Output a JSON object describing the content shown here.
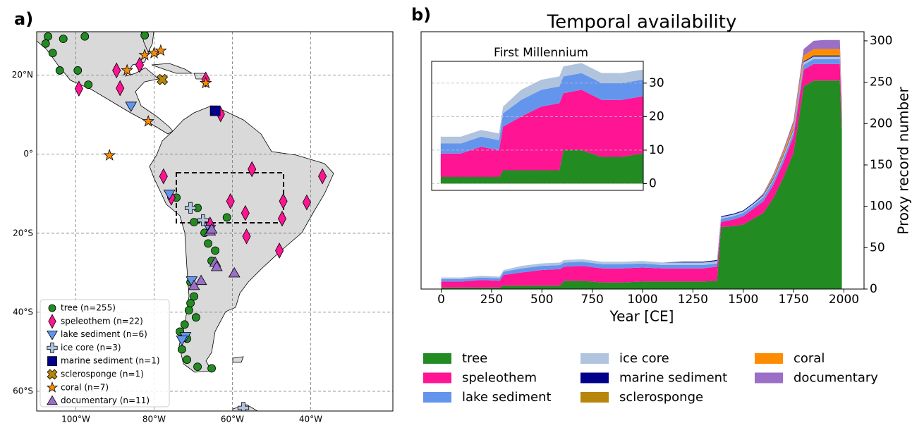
{
  "chart_data": [
    {
      "type": "map",
      "panel_label": "a)",
      "xlim": [
        -110,
        -19
      ],
      "ylim": [
        -65,
        31
      ],
      "xticks": [
        {
          "value": -100,
          "label": "100°W"
        },
        {
          "value": -80,
          "label": "80°W"
        },
        {
          "value": -60,
          "label": "60°W"
        },
        {
          "value": -40,
          "label": "40°W"
        }
      ],
      "yticks": [
        {
          "value": 20,
          "label": "20°N"
        },
        {
          "value": 0,
          "label": "0°"
        },
        {
          "value": -20,
          "label": "20°S"
        },
        {
          "value": -40,
          "label": "40°S"
        },
        {
          "value": -60,
          "label": "60°S"
        }
      ],
      "grid": true,
      "series": [
        {
          "name": "tree (n=255)",
          "color": "#228B22",
          "marker": "circle",
          "lon": [
            -107.1,
            -103.2,
            -97.7,
            -82.4,
            -107.7,
            -105.9,
            -104.1,
            -99.5,
            -96.8,
            -68.9,
            -69.8,
            -67.1,
            -66.2,
            -64.4,
            -65.3,
            -70.7,
            -69.8,
            -71.1,
            -72.2,
            -71.6,
            -72.9,
            -71.6,
            -68.9,
            -65.3,
            -74.3,
            -61.4,
            -70.7,
            -69.3,
            -73.4
          ],
          "lat": [
            29.8,
            29.2,
            29.8,
            30.1,
            28,
            25.6,
            21.2,
            21.2,
            17.6,
            -13.6,
            -17.2,
            -19.9,
            -22.6,
            -24.4,
            -27,
            -32.4,
            -36,
            -39.5,
            -43.1,
            -46.7,
            -49.4,
            -52,
            -53.8,
            -54.2,
            -11,
            -16,
            -37.7,
            -41.3,
            -44.9
          ]
        },
        {
          "name": "speleothem (n=22)",
          "color": "#FF1493",
          "marker": "diamond",
          "lon": [
            -89.6,
            -88.7,
            -99.2,
            -83.7,
            -66.8,
            -77.6,
            -75.6,
            -55,
            -60.5,
            -56.7,
            -56.4,
            -47.3,
            -41,
            -37,
            -65.7,
            -48,
            -63,
            -47
          ],
          "lat": [
            21.2,
            16.7,
            16.6,
            22.6,
            18.9,
            -5.6,
            -11,
            -3.8,
            -11.9,
            -14.9,
            -20.8,
            -16.3,
            -12.2,
            -5.6,
            -17.8,
            -24.4,
            10.1,
            -11.9
          ]
        },
        {
          "name": "lake sediment (n=6)",
          "color": "#6495ED",
          "marker": "triangle-down",
          "lon": [
            -85.9,
            -76.1,
            -70.4,
            -72,
            -72.9,
            -65.7
          ],
          "lat": [
            12.2,
            -10.1,
            -32,
            -46.1,
            -47,
            -19
          ]
        },
        {
          "name": "ice core (n=3)",
          "color": "#B0C4DE",
          "marker": "plus",
          "lon": [
            -70.7,
            -67.5,
            -57.2
          ],
          "lat": [
            -13.6,
            -16.7,
            -64.2
          ]
        },
        {
          "name": "marine sediment (n=1)",
          "color": "#00008B",
          "marker": "square",
          "lon": [
            -64.4
          ],
          "lat": [
            11
          ]
        },
        {
          "name": "sclerosponge (n=1)",
          "color": "#B8860B",
          "marker": "cross",
          "lon": [
            -77.9
          ],
          "lat": [
            18.9
          ]
        },
        {
          "name": "coral (n=7)",
          "color": "#FF8C00",
          "marker": "star",
          "lon": [
            -91.4,
            -81.5,
            -86.9,
            -82.4,
            -80,
            -78.3,
            -66.8
          ],
          "lat": [
            -0.3,
            8.3,
            21.2,
            25.1,
            25.6,
            26.2,
            18
          ]
        },
        {
          "name": "documentary (n=11)",
          "color": "#9A6FC5",
          "marker": "triangle-up",
          "lon": [
            -65.7,
            -64.4,
            -59.5,
            -68,
            -69.8,
            -64,
            -65.3
          ],
          "lat": [
            -19.5,
            -27.4,
            -30.1,
            -32,
            -33.3,
            -28.5,
            -19
          ]
        }
      ]
    },
    {
      "type": "stacked-area",
      "panel_label": "b)",
      "title": "Temporal availability",
      "xlabel": "Year [CE]",
      "ylabel": "Proxy record number",
      "xlim": [
        -100,
        2100
      ],
      "ylim": [
        0,
        311
      ],
      "xticks": [
        0,
        250,
        500,
        750,
        1000,
        1250,
        1500,
        1750,
        2000
      ],
      "yticks": [
        0,
        50,
        100,
        150,
        200,
        250,
        300
      ],
      "x": [
        0,
        100,
        200,
        290,
        310,
        400,
        500,
        590,
        610,
        700,
        800,
        900,
        1000,
        1100,
        1200,
        1250,
        1300,
        1370,
        1390,
        1450,
        1500,
        1550,
        1600,
        1650,
        1700,
        1750,
        1800,
        1850,
        1900,
        1950,
        1980,
        1990
      ],
      "series": [
        {
          "name": "tree",
          "color": "#228B22",
          "values": [
            2,
            2,
            2,
            2,
            4,
            4,
            4,
            4,
            10,
            10,
            8,
            8,
            9,
            9,
            9,
            9,
            9,
            10,
            75,
            76,
            78,
            85,
            92,
            110,
            135,
            165,
            245,
            252,
            252,
            252,
            252,
            190
          ]
        },
        {
          "name": "speleothem",
          "color": "#FF1493",
          "values": [
            7,
            7,
            9,
            8,
            13,
            16,
            19,
            20,
            17,
            18,
            17,
            17,
            17,
            16,
            16,
            16,
            16,
            17,
            6,
            8,
            10,
            12,
            14,
            16,
            18,
            20,
            20,
            20,
            20,
            20,
            20,
            15
          ]
        },
        {
          "name": "lake sediment",
          "color": "#6495ED",
          "values": [
            3,
            3,
            3,
            3,
            4,
            5,
            5,
            5,
            5,
            5,
            5,
            5,
            5,
            4,
            4,
            4,
            4,
            4,
            4,
            4,
            4,
            4,
            5,
            5,
            5,
            5,
            6,
            6,
            6,
            6,
            6,
            5
          ]
        },
        {
          "name": "ice core",
          "color": "#B0C4DE",
          "values": [
            2,
            2,
            2,
            2,
            2,
            3,
            3,
            3,
            3,
            3,
            3,
            3,
            3,
            3,
            3,
            3,
            3,
            3,
            2,
            2,
            2,
            2,
            2,
            2,
            3,
            3,
            3,
            3,
            3,
            3,
            3,
            2
          ]
        },
        {
          "name": "marine sediment",
          "color": "#00008B",
          "values": [
            0,
            0,
            0,
            0,
            0,
            0,
            0,
            0,
            0,
            0,
            0,
            0,
            0,
            0,
            1,
            1,
            1,
            1,
            1,
            1,
            1,
            1,
            1,
            1,
            1,
            1,
            1,
            1,
            1,
            1,
            1,
            1
          ]
        },
        {
          "name": "sclerosponge",
          "color": "#B8860B",
          "values": [
            0,
            0,
            0,
            0,
            0,
            0,
            0,
            0,
            0,
            0,
            0,
            0,
            0,
            0,
            0,
            0,
            0,
            0,
            0,
            0,
            0,
            0,
            0,
            1,
            1,
            1,
            1,
            1,
            1,
            1,
            1,
            1
          ]
        },
        {
          "name": "coral",
          "color": "#FF8C00",
          "values": [
            0,
            0,
            0,
            0,
            0,
            0,
            0,
            0,
            0,
            0,
            0,
            0,
            0,
            0,
            0,
            0,
            0,
            0,
            0,
            0,
            0,
            0,
            1,
            2,
            3,
            4,
            6,
            7,
            7,
            7,
            7,
            5
          ]
        },
        {
          "name": "documentary",
          "color": "#9A6FC5",
          "values": [
            0,
            0,
            0,
            0,
            0,
            0,
            0,
            0,
            0,
            0,
            0,
            0,
            0,
            0,
            0,
            0,
            0,
            0,
            0,
            0,
            0,
            0,
            1,
            2,
            3,
            5,
            8,
            10,
            11,
            11,
            11,
            8
          ]
        }
      ]
    },
    {
      "type": "inset",
      "title": "First Millennium",
      "xlim": [
        -45,
        1007
      ],
      "ylim": [
        -2,
        36.5
      ],
      "yticks": [
        0,
        10,
        20,
        30
      ],
      "grid": true
    }
  ]
}
